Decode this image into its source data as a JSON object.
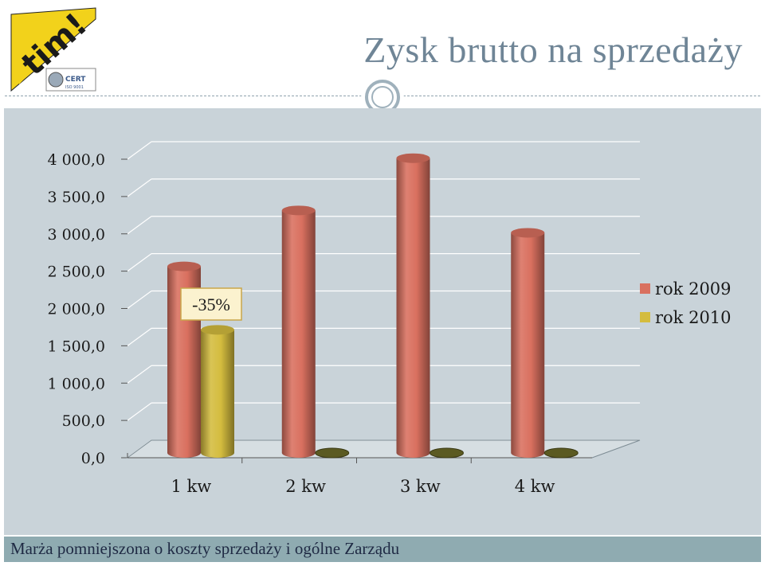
{
  "slide": {
    "title": "Zysk brutto na sprzedaży",
    "footer": "Marża pomniejszona o koszty sprzedaży i ogólne Zarządu",
    "logo": {
      "brand_text": "tim!",
      "cert_text": "CERT",
      "cert_sub": "ISO 9001"
    }
  },
  "colors": {
    "series_2009": "#d9705f",
    "series_2010": "#d4bc3e",
    "panel": "#c9d3d9",
    "title": "#6f8596"
  },
  "chart_data": {
    "type": "bar",
    "title": "",
    "xlabel": "",
    "ylabel": "",
    "categories": [
      "1 kw",
      "2 kw",
      "3 kw",
      "4 kw"
    ],
    "series": [
      {
        "name": "rok 2009",
        "values": [
          2500,
          3250,
          3950,
          2950
        ]
      },
      {
        "name": "rok 2010",
        "values": [
          1650,
          0,
          0,
          0
        ]
      }
    ],
    "ylim": [
      0,
      4000
    ],
    "yticks": [
      "0,0",
      "500,0",
      "1 000,0",
      "1 500,0",
      "2 000,0",
      "2 500,0",
      "3 000,0",
      "3 500,0",
      "4 000,0"
    ],
    "annotation": "-35%",
    "grid": true,
    "legend_position": "right",
    "style": "3d-cylinder"
  }
}
